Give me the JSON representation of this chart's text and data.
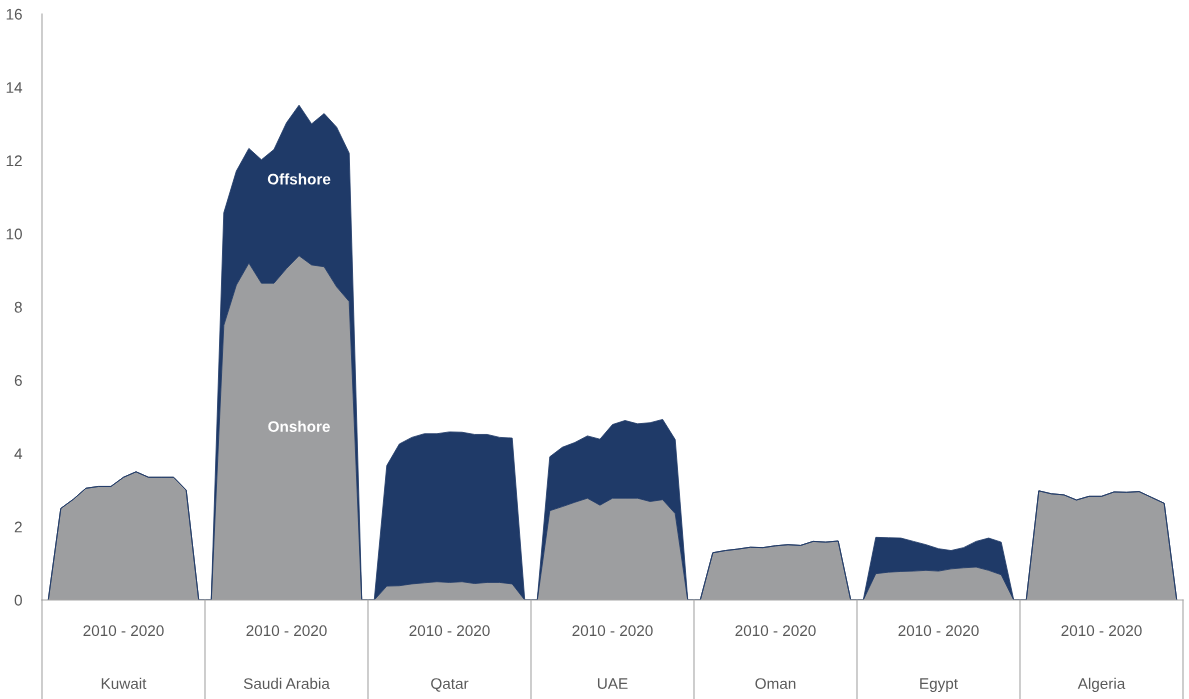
{
  "chart_data": {
    "type": "area",
    "stacked": true,
    "categories": [
      null,
      null,
      null,
      null,
      null,
      null,
      "Kuwait",
      null,
      null,
      null,
      null,
      null,
      null,
      null,
      null,
      null,
      null,
      null,
      null,
      "Saudi Arabia",
      null,
      null,
      null,
      null,
      null,
      null,
      null,
      null,
      null,
      null,
      null,
      null,
      "Qatar",
      null,
      null,
      null,
      null,
      null,
      null,
      null,
      null,
      null,
      null,
      null,
      null,
      "UAE",
      null,
      null,
      null,
      null,
      null,
      null,
      null,
      null,
      null,
      null,
      null,
      null,
      "Oman",
      null,
      null,
      null,
      null,
      null,
      null,
      null,
      null,
      null,
      null,
      null,
      null,
      "Egypt",
      null,
      null,
      null,
      null,
      null,
      null,
      null,
      null,
      null,
      null,
      null,
      null,
      "Algeria",
      null,
      null,
      null,
      null,
      null,
      null
    ],
    "series": [
      {
        "name": "Onshore",
        "color": "#9d9ea0",
        "values": [
          0,
          2.5,
          2.75,
          3.05,
          3.1,
          3.1,
          3.35,
          3.5,
          3.35,
          3.35,
          3.35,
          3.0,
          0,
          0,
          7.5,
          8.6,
          9.2,
          8.65,
          8.65,
          9.05,
          9.4,
          9.15,
          9.1,
          8.55,
          8.15,
          0,
          0,
          0.38,
          0.39,
          0.44,
          0.47,
          0.5,
          0.48,
          0.5,
          0.45,
          0.48,
          0.48,
          0.44,
          0,
          0,
          2.44,
          2.55,
          2.67,
          2.78,
          2.59,
          2.78,
          2.78,
          2.78,
          2.69,
          2.74,
          2.36,
          0,
          0,
          1.29,
          1.35,
          1.39,
          1.44,
          1.43,
          1.48,
          1.51,
          1.49,
          1.6,
          1.58,
          1.61,
          0,
          0,
          0.72,
          0.76,
          0.78,
          0.79,
          0.81,
          0.79,
          0.85,
          0.88,
          0.9,
          0.81,
          0.69,
          0,
          0,
          2.98,
          2.9,
          2.87,
          2.73,
          2.83,
          2.83,
          2.95,
          2.94,
          2.96,
          2.8,
          2.64,
          0
        ]
      },
      {
        "name": "Offshore",
        "color": "#1f3a68",
        "values": [
          0,
          0,
          0,
          0,
          0,
          0,
          0,
          0,
          0,
          0,
          0,
          0,
          0,
          0,
          3.07,
          3.11,
          3.13,
          3.37,
          3.65,
          3.98,
          4.11,
          3.85,
          4.18,
          4.36,
          4.05,
          0,
          0,
          3.29,
          3.87,
          4.0,
          4.07,
          4.04,
          4.11,
          4.08,
          4.07,
          4.04,
          3.96,
          3.98,
          0,
          0,
          1.47,
          1.62,
          1.63,
          1.7,
          1.8,
          2.01,
          2.12,
          2.03,
          2.15,
          2.19,
          2.02,
          0,
          0,
          0,
          0,
          0,
          0,
          0,
          0,
          0,
          0,
          0,
          0,
          0,
          0,
          0,
          0.99,
          0.94,
          0.91,
          0.81,
          0.7,
          0.61,
          0.5,
          0.55,
          0.7,
          0.88,
          0.89,
          0,
          0,
          0,
          0,
          0,
          0,
          0,
          0,
          0,
          0,
          0,
          0,
          0,
          0
        ]
      }
    ],
    "ylim": [
      0,
      16
    ],
    "yticks": [
      0,
      2,
      4,
      6,
      8,
      10,
      12,
      14,
      16
    ],
    "grid": false,
    "legend": false,
    "annotations": [
      "2010 - 2020",
      "2010 - 2020",
      "2010 - 2020",
      "2010 - 2020",
      "2010 - 2020",
      "2010 - 2020",
      "2010 - 2020"
    ]
  }
}
